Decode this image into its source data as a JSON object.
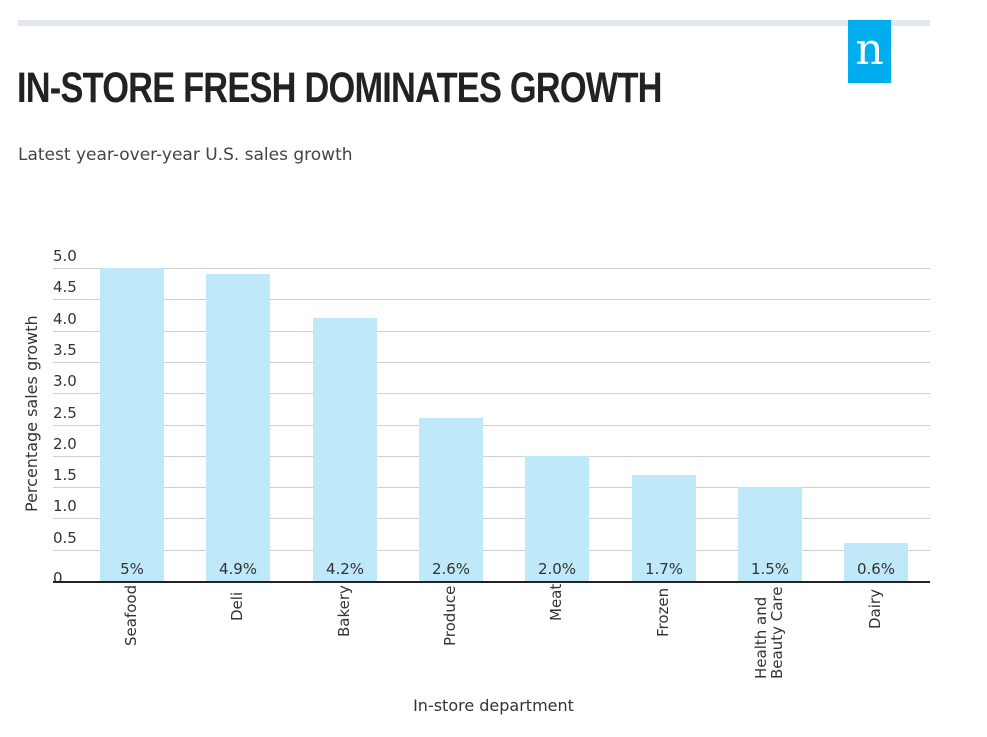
{
  "header": {
    "title": "IN-STORE FRESH DOMINATES GROWTH",
    "subtitle": "Latest year-over-year U.S. sales growth",
    "logo_letter": "n"
  },
  "colors": {
    "bar": "#bfe9f8",
    "logo": "#00aeef",
    "grid": "#cfcfcf"
  },
  "chart_data": {
    "type": "bar",
    "title": "IN-STORE FRESH DOMINATES GROWTH",
    "subtitle": "Latest year-over-year U.S. sales growth",
    "xlabel": "In-store department",
    "ylabel": "Percentage sales growth",
    "ylim": [
      0,
      5.0
    ],
    "yticks": [
      "0",
      "0.5",
      "1.0",
      "1.5",
      "2.0",
      "2.5",
      "3.0",
      "3.5",
      "4.0",
      "4.5",
      "5.0"
    ],
    "categories": [
      [
        "Seafood"
      ],
      [
        "Deli"
      ],
      [
        "Bakery"
      ],
      [
        "Produce"
      ],
      [
        "Meat"
      ],
      [
        "Frozen"
      ],
      [
        "Health and",
        "Beauty Care"
      ],
      [
        "Dairy"
      ]
    ],
    "values": [
      5.0,
      4.9,
      4.2,
      2.6,
      2.0,
      1.7,
      1.5,
      0.6
    ],
    "data_labels": [
      "5%",
      "4.9%",
      "4.2%",
      "2.6%",
      "2.0%",
      "1.7%",
      "1.5%",
      "0.6%"
    ],
    "grid": true
  }
}
